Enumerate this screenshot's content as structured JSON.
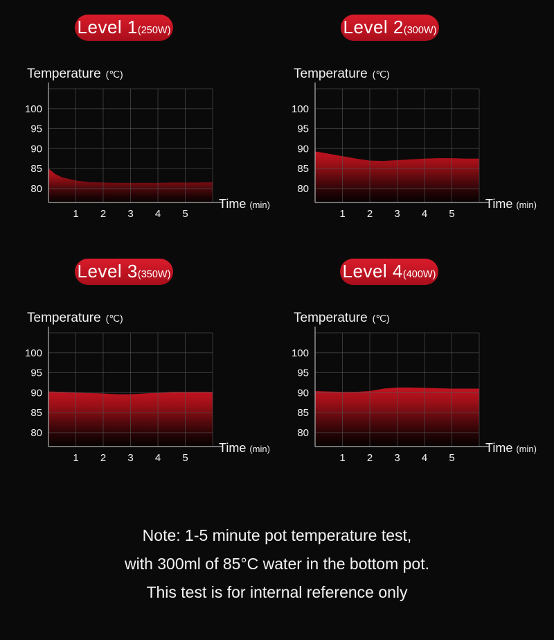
{
  "colors": {
    "background": "#0a0a0a",
    "text": "#f2f2f2",
    "grid": "#555555",
    "axis": "#b2b2b2",
    "badge_red_top": "#d91c2b",
    "badge_red_bottom": "#a90e1b",
    "area_gradient": [
      [
        "0%",
        "#d21423"
      ],
      [
        "25%",
        "#a81018"
      ],
      [
        "55%",
        "#5c090e"
      ],
      [
        "80%",
        "#250304"
      ],
      [
        "100%",
        "#060101"
      ]
    ]
  },
  "note": {
    "line1": "Note: 1-5 minute pot temperature test,",
    "line2": "with 300ml of 85°C water in the bottom pot.",
    "line3": "This test is for internal reference only"
  },
  "chart_data": [
    {
      "type": "area",
      "badge": {
        "level": "Level 1",
        "power": "(250W)"
      },
      "title": "Temperature",
      "title_unit": "(℃)",
      "xlabel": "Time",
      "xlabel_unit": "(min)",
      "x": [
        0,
        0.25,
        0.5,
        1,
        1.5,
        2,
        2.5,
        3,
        3.5,
        4,
        4.5,
        5,
        5.5,
        6
      ],
      "values": [
        85.0,
        83.6,
        82.8,
        82.0,
        81.6,
        81.5,
        81.4,
        81.4,
        81.4,
        81.4,
        81.5,
        81.5,
        81.5,
        81.6
      ],
      "x_ticks": [
        1,
        2,
        3,
        4,
        5
      ],
      "y_ticks": [
        80,
        85,
        90,
        95,
        100
      ],
      "xlim": [
        0,
        6
      ],
      "ylim": [
        76.5,
        105
      ],
      "grid": true,
      "legend": "none"
    },
    {
      "type": "area",
      "badge": {
        "level": "Level 2",
        "power": "(300W)"
      },
      "title": "Temperature",
      "title_unit": "(℃)",
      "xlabel": "Time",
      "xlabel_unit": "(min)",
      "x": [
        0,
        0.5,
        1,
        1.5,
        2,
        2.5,
        3,
        3.5,
        4,
        4.5,
        5,
        5.5,
        6
      ],
      "values": [
        89.3,
        88.7,
        88.1,
        87.5,
        87.0,
        86.9,
        87.1,
        87.3,
        87.5,
        87.6,
        87.6,
        87.5,
        87.5
      ],
      "x_ticks": [
        1,
        2,
        3,
        4,
        5
      ],
      "y_ticks": [
        80,
        85,
        90,
        95,
        100
      ],
      "xlim": [
        0,
        6
      ],
      "ylim": [
        76.5,
        105
      ],
      "grid": true,
      "legend": "none"
    },
    {
      "type": "area",
      "badge": {
        "level": "Level 3",
        "power": "(350W)"
      },
      "title": "Temperature",
      "title_unit": "(℃)",
      "xlabel": "Time",
      "xlabel_unit": "(min)",
      "x": [
        0,
        0.5,
        1,
        1.5,
        2,
        2.5,
        3,
        3.5,
        4,
        4.5,
        5,
        5.5,
        6
      ],
      "values": [
        90.3,
        90.2,
        90.1,
        89.9,
        89.8,
        89.6,
        89.6,
        89.8,
        90.0,
        90.2,
        90.2,
        90.2,
        90.2
      ],
      "x_ticks": [
        1,
        2,
        3,
        4,
        5
      ],
      "y_ticks": [
        80,
        85,
        90,
        95,
        100
      ],
      "xlim": [
        0,
        6
      ],
      "ylim": [
        76.5,
        105
      ],
      "grid": true,
      "legend": "none"
    },
    {
      "type": "area",
      "badge": {
        "level": "Level 4",
        "power": "(400W)"
      },
      "title": "Temperature",
      "title_unit": "(℃)",
      "xlabel": "Time",
      "xlabel_unit": "(min)",
      "x": [
        0,
        0.5,
        1,
        1.5,
        2,
        2.5,
        3,
        3.5,
        4,
        4.5,
        5,
        5.5,
        6
      ],
      "values": [
        90.4,
        90.3,
        90.2,
        90.2,
        90.4,
        91.0,
        91.3,
        91.3,
        91.2,
        91.1,
        91.0,
        91.0,
        91.0
      ],
      "x_ticks": [
        1,
        2,
        3,
        4,
        5
      ],
      "y_ticks": [
        80,
        85,
        90,
        95,
        100
      ],
      "xlim": [
        0,
        6
      ],
      "ylim": [
        76.5,
        105
      ],
      "grid": true,
      "legend": "none"
    }
  ]
}
